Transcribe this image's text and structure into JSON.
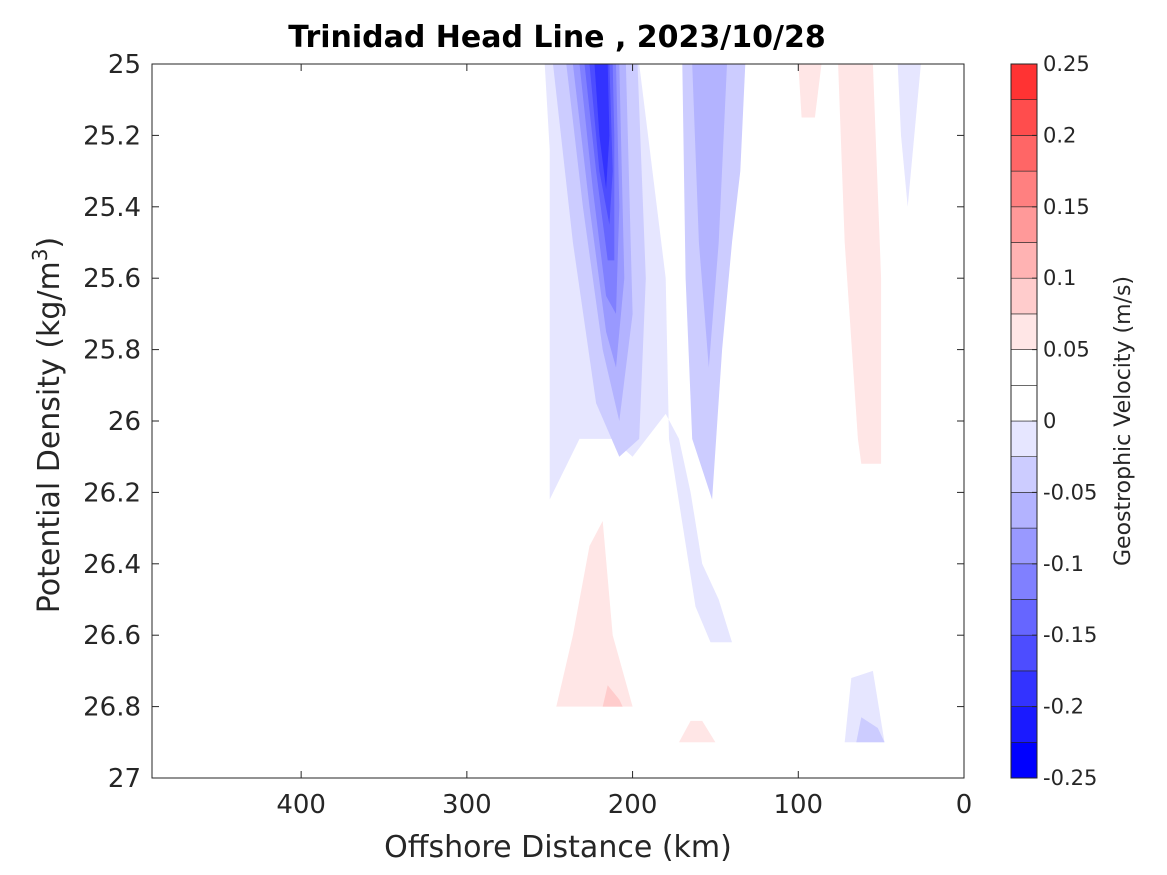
{
  "chart_data": {
    "type": "heatmap",
    "subtype": "filled-contour",
    "title": "Trinidad Head Line , 2023/10/28",
    "xlabel": "Offshore Distance (km)",
    "ylabel": "Potential Density (kg/m",
    "ylabel_sup": "3",
    "ylabel_end": ")",
    "xlim": [
      490,
      0
    ],
    "ylim": [
      25,
      27
    ],
    "x_reversed": true,
    "y_reversed": true,
    "xticks": [
      400,
      300,
      200,
      100,
      0
    ],
    "xtick_labels": [
      "400",
      "300",
      "200",
      "100",
      "0"
    ],
    "yticks": [
      25,
      25.2,
      25.4,
      25.6,
      25.8,
      26,
      26.2,
      26.4,
      26.6,
      26.8,
      27
    ],
    "ytick_labels": [
      "25",
      "25.2",
      "25.4",
      "25.6",
      "25.8",
      "26",
      "26.2",
      "26.4",
      "26.6",
      "26.8",
      "27"
    ],
    "grid": false,
    "colorbar": {
      "label": "Geostrophic Velocity (m/s)",
      "range": [
        -0.25,
        0.25
      ],
      "levels": [
        -0.25,
        -0.225,
        -0.2,
        -0.175,
        -0.15,
        -0.125,
        -0.1,
        -0.075,
        -0.05,
        -0.025,
        0,
        0.025,
        0.05,
        0.075,
        0.1,
        0.125,
        0.15,
        0.175,
        0.2,
        0.225,
        0.25
      ],
      "ticks": [
        0.25,
        0.2,
        0.15,
        0.1,
        0.05,
        0,
        -0.05,
        -0.1,
        -0.15,
        -0.2,
        -0.25
      ],
      "tick_labels": [
        "0.25",
        "0.2",
        "0.15",
        "0.1",
        "0.05",
        "0",
        "-0.05",
        "-0.1",
        "-0.15",
        "-0.2",
        "-0.25"
      ],
      "colors": [
        "#0000ff",
        "#1a1aff",
        "#3333ff",
        "#4d4dff",
        "#6666ff",
        "#8080ff",
        "#9999ff",
        "#b3b3ff",
        "#ccccff",
        "#e6e6ff",
        "#ffffff",
        "#ffffff",
        "#ffe6e6",
        "#ffcccc",
        "#ffb3b3",
        "#ff9999",
        "#ff8080",
        "#ff6666",
        "#ff4d4d",
        "#ff3333",
        "#ff1a1a",
        "#ff0000"
      ]
    },
    "regions": [
      {
        "name": "offshore-negative-envelope",
        "value": -0.025,
        "points": [
          [
            250,
            25.24
          ],
          [
            253,
            25
          ],
          [
            196,
            25
          ],
          [
            180,
            25.6
          ],
          [
            178,
            26.05
          ],
          [
            162,
            26.52
          ],
          [
            153,
            26.62
          ],
          [
            140,
            26.62
          ],
          [
            148,
            26.5
          ],
          [
            158,
            26.4
          ],
          [
            165,
            26.2
          ],
          [
            172,
            26.05
          ],
          [
            180,
            25.98
          ],
          [
            200,
            26.1
          ],
          [
            212,
            26.05
          ],
          [
            232,
            26.05
          ],
          [
            250,
            26.22
          ]
        ]
      },
      {
        "name": "offshore-negative-core-1",
        "value": -0.05,
        "points": [
          [
            248,
            25
          ],
          [
            236,
            25.5
          ],
          [
            222,
            25.95
          ],
          [
            208,
            26.1
          ],
          [
            196,
            26.05
          ],
          [
            192,
            25.6
          ],
          [
            197,
            25
          ]
        ]
      },
      {
        "name": "offshore-negative-core-2",
        "value": -0.075,
        "points": [
          [
            240,
            25
          ],
          [
            230,
            25.4
          ],
          [
            218,
            25.8
          ],
          [
            208,
            26.0
          ],
          [
            200,
            25.7
          ],
          [
            204,
            25
          ]
        ]
      },
      {
        "name": "offshore-negative-core-3",
        "value": -0.1,
        "points": [
          [
            236,
            25
          ],
          [
            226,
            25.4
          ],
          [
            216,
            25.75
          ],
          [
            210,
            25.85
          ],
          [
            205,
            25.6
          ],
          [
            208,
            25
          ]
        ]
      },
      {
        "name": "offshore-negative-core-4",
        "value": -0.125,
        "points": [
          [
            232,
            25
          ],
          [
            224,
            25.35
          ],
          [
            216,
            25.65
          ],
          [
            210,
            25.7
          ],
          [
            208,
            25.4
          ],
          [
            210,
            25
          ]
        ]
      },
      {
        "name": "offshore-negative-core-5",
        "value": -0.15,
        "points": [
          [
            229,
            25
          ],
          [
            222,
            25.3
          ],
          [
            215,
            25.55
          ],
          [
            211,
            25.55
          ],
          [
            211,
            25.2
          ],
          [
            212,
            25
          ]
        ]
      },
      {
        "name": "offshore-negative-core-6",
        "value": -0.175,
        "points": [
          [
            226,
            25
          ],
          [
            220,
            25.3
          ],
          [
            214,
            25.45
          ],
          [
            212,
            25.3
          ],
          [
            214,
            25
          ]
        ]
      },
      {
        "name": "offshore-negative-core-7",
        "value": -0.2,
        "points": [
          [
            223,
            25
          ],
          [
            220,
            25.2
          ],
          [
            216,
            25.35
          ],
          [
            214,
            25.2
          ],
          [
            215,
            25
          ]
        ]
      },
      {
        "name": "mid-negative-band-1",
        "value": -0.05,
        "points": [
          [
            170,
            25
          ],
          [
            168,
            25.6
          ],
          [
            164,
            26.05
          ],
          [
            152,
            26.22
          ],
          [
            146,
            25.8
          ],
          [
            140,
            25.5
          ],
          [
            135,
            25.3
          ],
          [
            132,
            25
          ]
        ]
      },
      {
        "name": "mid-negative-band-2",
        "value": -0.075,
        "points": [
          [
            164,
            25
          ],
          [
            160,
            25.5
          ],
          [
            154,
            25.85
          ],
          [
            148,
            25.5
          ],
          [
            143,
            25
          ]
        ]
      },
      {
        "name": "nearshore-negative-sliver",
        "value": -0.025,
        "points": [
          [
            40,
            25
          ],
          [
            38,
            25.2
          ],
          [
            34,
            25.4
          ],
          [
            30,
            25.2
          ],
          [
            26,
            25
          ]
        ]
      },
      {
        "name": "bottom-negative-patch-1",
        "value": -0.025,
        "points": [
          [
            72,
            26.9
          ],
          [
            68,
            26.72
          ],
          [
            55,
            26.7
          ],
          [
            48,
            26.9
          ]
        ]
      },
      {
        "name": "bottom-negative-patch-2",
        "value": -0.05,
        "points": [
          [
            65,
            26.9
          ],
          [
            62,
            26.83
          ],
          [
            52,
            26.86
          ],
          [
            48,
            26.9
          ]
        ]
      },
      {
        "name": "deep-positive-lobe-1",
        "value": 0.025,
        "points": [
          [
            250,
            26.8
          ],
          [
            250,
            26.65
          ],
          [
            238,
            26.35
          ],
          [
            228,
            26.15
          ],
          [
            218,
            26.1
          ],
          [
            210,
            26.3
          ],
          [
            195,
            26.6
          ],
          [
            188,
            26.8
          ]
        ]
      },
      {
        "name": "deep-positive-lobe-2",
        "value": 0.05,
        "points": [
          [
            246,
            26.8
          ],
          [
            236,
            26.6
          ],
          [
            226,
            26.35
          ],
          [
            218,
            26.28
          ],
          [
            212,
            26.6
          ],
          [
            200,
            26.8
          ]
        ]
      },
      {
        "name": "deep-positive-lobe-3",
        "value": 0.075,
        "points": [
          [
            218,
            26.8
          ],
          [
            215,
            26.74
          ],
          [
            208,
            26.78
          ],
          [
            206,
            26.8
          ]
        ]
      },
      {
        "name": "upper-positive-sliver",
        "value": 0.025,
        "points": [
          [
            190,
            25
          ],
          [
            190,
            25.12
          ],
          [
            186,
            25.16
          ],
          [
            178,
            25.05
          ],
          [
            178,
            25
          ]
        ]
      },
      {
        "name": "deep-positive-mid-1",
        "value": 0.025,
        "points": [
          [
            178,
            26.9
          ],
          [
            175,
            26.82
          ],
          [
            162,
            26.72
          ],
          [
            150,
            26.78
          ],
          [
            142,
            26.9
          ]
        ]
      },
      {
        "name": "deep-positive-mid-2",
        "value": 0.05,
        "points": [
          [
            172,
            26.9
          ],
          [
            165,
            26.84
          ],
          [
            158,
            26.84
          ],
          [
            150,
            26.9
          ]
        ]
      },
      {
        "name": "nearshore-positive-band-1",
        "value": 0.025,
        "points": [
          [
            112,
            25
          ],
          [
            108,
            25.7
          ],
          [
            104,
            25.83
          ],
          [
            90,
            25.85
          ],
          [
            82,
            25.78
          ],
          [
            72,
            26.2
          ],
          [
            70,
            26.35
          ],
          [
            52,
            26.4
          ],
          [
            46,
            26.45
          ],
          [
            40,
            26.3
          ],
          [
            38,
            25.95
          ],
          [
            46,
            25.6
          ],
          [
            55,
            25.3
          ],
          [
            62,
            25
          ]
        ]
      },
      {
        "name": "nearshore-positive-band-2",
        "value": 0.05,
        "points": [
          [
            100,
            25
          ],
          [
            98,
            25.15
          ],
          [
            90,
            25.15
          ],
          [
            86,
            25
          ]
        ]
      },
      {
        "name": "nearshore-positive-band-3",
        "value": 0.05,
        "points": [
          [
            76,
            25
          ],
          [
            72,
            25.5
          ],
          [
            64,
            26.05
          ],
          [
            62,
            26.12
          ],
          [
            50,
            26.12
          ],
          [
            50,
            25.6
          ],
          [
            55,
            25
          ]
        ]
      },
      {
        "name": "coastal-positive-sliver",
        "value": 0.025,
        "points": [
          [
            20,
            25
          ],
          [
            18,
            25.35
          ],
          [
            15,
            25.8
          ],
          [
            15,
            25.9
          ],
          [
            9,
            26.2
          ],
          [
            9,
            26.05
          ],
          [
            10,
            25.6
          ],
          [
            10,
            25
          ]
        ]
      }
    ]
  }
}
